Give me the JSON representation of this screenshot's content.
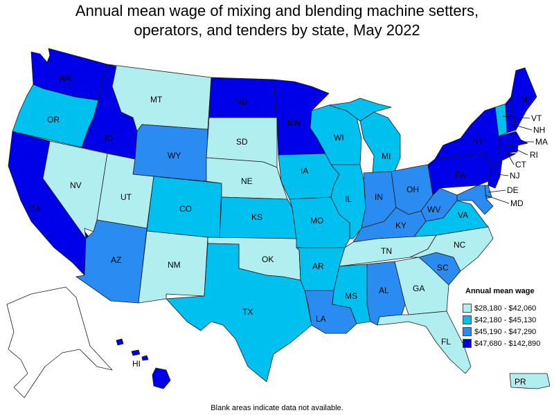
{
  "title_line1": "Annual mean wage of mixing and blending machine setters,",
  "title_line2": "operators, and tenders by state, May 2022",
  "footnote": "Blank areas indicate data not available.",
  "legend": {
    "title": "Annual mean wage",
    "items": [
      {
        "label": "$28,180 - $42,060",
        "color": "#b0eef0"
      },
      {
        "label": "$42,180 - $45,130",
        "color": "#00c0f0"
      },
      {
        "label": "$45,190 - $47,290",
        "color": "#2a8cf0"
      },
      {
        "label": "$47,680 - $142,890",
        "color": "#0000e8"
      }
    ]
  },
  "states": [
    {
      "abbr": "WA",
      "tier": 3
    },
    {
      "abbr": "OR",
      "tier": 1
    },
    {
      "abbr": "CA",
      "tier": 3
    },
    {
      "abbr": "ID",
      "tier": 3
    },
    {
      "abbr": "NV",
      "tier": 0
    },
    {
      "abbr": "MT",
      "tier": 0
    },
    {
      "abbr": "WY",
      "tier": 2
    },
    {
      "abbr": "UT",
      "tier": 0
    },
    {
      "abbr": "AZ",
      "tier": 2
    },
    {
      "abbr": "CO",
      "tier": 1
    },
    {
      "abbr": "NM",
      "tier": 0
    },
    {
      "abbr": "ND",
      "tier": 3
    },
    {
      "abbr": "SD",
      "tier": 0
    },
    {
      "abbr": "NE",
      "tier": 0
    },
    {
      "abbr": "KS",
      "tier": 1
    },
    {
      "abbr": "OK",
      "tier": 0
    },
    {
      "abbr": "TX",
      "tier": 1
    },
    {
      "abbr": "MN",
      "tier": 3
    },
    {
      "abbr": "IA",
      "tier": 1
    },
    {
      "abbr": "MO",
      "tier": 1
    },
    {
      "abbr": "AR",
      "tier": 1
    },
    {
      "abbr": "LA",
      "tier": 2
    },
    {
      "abbr": "WI",
      "tier": 1
    },
    {
      "abbr": "IL",
      "tier": 1
    },
    {
      "abbr": "MI",
      "tier": 1
    },
    {
      "abbr": "IN",
      "tier": 2
    },
    {
      "abbr": "OH",
      "tier": 2
    },
    {
      "abbr": "KY",
      "tier": 2
    },
    {
      "abbr": "TN",
      "tier": 0
    },
    {
      "abbr": "MS",
      "tier": 1
    },
    {
      "abbr": "AL",
      "tier": 2
    },
    {
      "abbr": "GA",
      "tier": 0
    },
    {
      "abbr": "FL",
      "tier": 0
    },
    {
      "abbr": "SC",
      "tier": 2
    },
    {
      "abbr": "NC",
      "tier": 0
    },
    {
      "abbr": "VA",
      "tier": 1
    },
    {
      "abbr": "WV",
      "tier": 2
    },
    {
      "abbr": "PA",
      "tier": 3
    },
    {
      "abbr": "NY",
      "tier": 3
    },
    {
      "abbr": "VT",
      "tier": 1
    },
    {
      "abbr": "NH",
      "tier": 3
    },
    {
      "abbr": "ME",
      "tier": 3
    },
    {
      "abbr": "MA",
      "tier": 3
    },
    {
      "abbr": "RI",
      "tier": 3
    },
    {
      "abbr": "CT",
      "tier": 3
    },
    {
      "abbr": "NJ",
      "tier": 3
    },
    {
      "abbr": "DE",
      "tier": 2
    },
    {
      "abbr": "MD",
      "tier": 2
    },
    {
      "abbr": "HI",
      "tier": 3
    },
    {
      "abbr": "PR",
      "tier": 0
    }
  ]
}
